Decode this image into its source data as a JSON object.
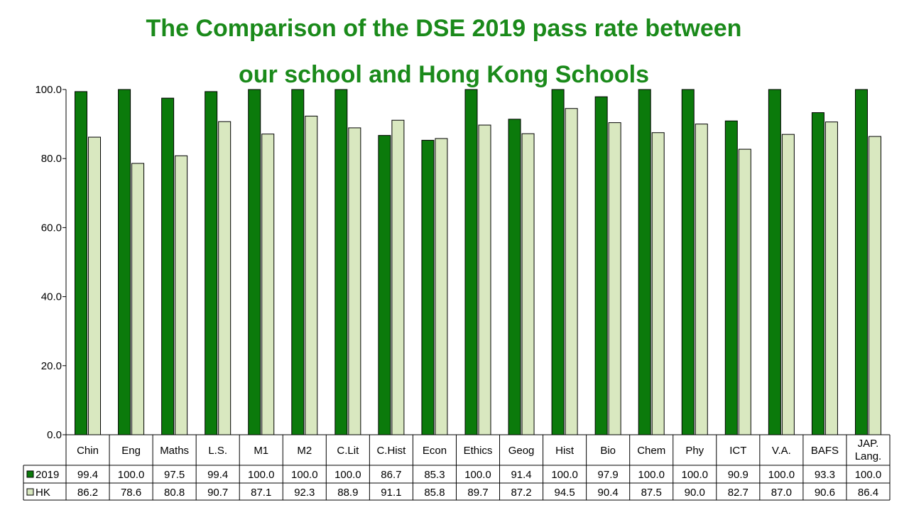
{
  "colors": {
    "title": "#1a8a1a",
    "series_2019": "#0b7a0b",
    "series_hk": "#d9e8c0",
    "border": "#000000"
  },
  "chart_data": {
    "type": "bar",
    "title_lines": [
      "The Comparison of the DSE 2019 pass rate between",
      "our school and Hong Kong Schools"
    ],
    "xlabel": "",
    "ylabel": "",
    "ylim": [
      0,
      100
    ],
    "yticks": [
      "0.0",
      "20.0",
      "40.0",
      "60.0",
      "80.0",
      "100.0"
    ],
    "ytick_values": [
      0,
      20,
      40,
      60,
      80,
      100
    ],
    "grid": false,
    "legend": "data-table-left",
    "categories": [
      [
        "Chin"
      ],
      [
        "Eng"
      ],
      [
        "Maths"
      ],
      [
        "L.S."
      ],
      [
        "M1"
      ],
      [
        "M2"
      ],
      [
        "C.Lit"
      ],
      [
        "C.Hist"
      ],
      [
        "Econ"
      ],
      [
        "Ethics"
      ],
      [
        "Geog"
      ],
      [
        "Hist"
      ],
      [
        "Bio"
      ],
      [
        "Chem"
      ],
      [
        "Phy"
      ],
      [
        "ICT"
      ],
      [
        "V.A."
      ],
      [
        "BAFS"
      ],
      [
        "JAP.",
        "Lang."
      ]
    ],
    "series": [
      {
        "name": "2019",
        "color": "#0b7a0b",
        "values": [
          99.4,
          100.0,
          97.5,
          99.4,
          100.0,
          100.0,
          100.0,
          86.7,
          85.3,
          100.0,
          91.4,
          100.0,
          97.9,
          100.0,
          100.0,
          90.9,
          100.0,
          93.3,
          100.0
        ],
        "labels": [
          "99.4",
          "100.0",
          "97.5",
          "99.4",
          "100.0",
          "100.0",
          "100.0",
          "86.7",
          "85.3",
          "100.0",
          "91.4",
          "100.0",
          "97.9",
          "100.0",
          "100.0",
          "90.9",
          "100.0",
          "93.3",
          "100.0"
        ]
      },
      {
        "name": "HK",
        "color": "#d9e8c0",
        "values": [
          86.2,
          78.6,
          80.8,
          90.7,
          87.1,
          92.3,
          88.9,
          91.1,
          85.8,
          89.7,
          87.2,
          94.5,
          90.4,
          87.5,
          90.0,
          82.7,
          87.0,
          90.6,
          86.4
        ],
        "labels": [
          "86.2",
          "78.6",
          "80.8",
          "90.7",
          "87.1",
          "92.3",
          "88.9",
          "91.1",
          "85.8",
          "89.7",
          "87.2",
          "94.5",
          "90.4",
          "87.5",
          "90.0",
          "82.7",
          "87.0",
          "90.6",
          "86.4"
        ]
      }
    ]
  }
}
